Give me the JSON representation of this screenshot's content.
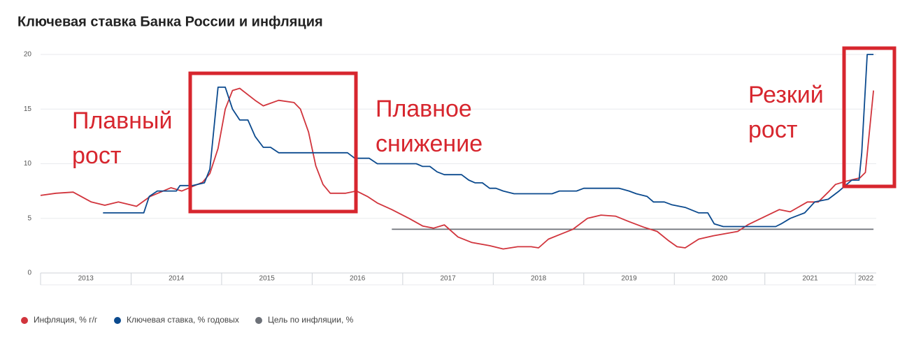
{
  "chart_data": {
    "type": "line",
    "title": "Ключевая ставка Банка России и инфляция",
    "annotations": [
      {
        "lines": [
          "Плавный",
          "рост"
        ]
      },
      {
        "lines": [
          "Плавное",
          "снижение"
        ]
      },
      {
        "lines": [
          "Резкий",
          "рост"
        ]
      }
    ],
    "xlim": [
      2013,
      2022.23
    ],
    "xticks": [
      2013,
      2014,
      2015,
      2016,
      2017,
      2018,
      2019,
      2020,
      2021,
      2022
    ],
    "ylim": [
      0,
      20
    ],
    "yticks": [
      0,
      5,
      10,
      15,
      20
    ],
    "grid": true,
    "series": [
      {
        "name": "Инфляция, % г/г",
        "color": "#d1343c",
        "x": [
          2013.0,
          2013.17,
          2013.36,
          2013.56,
          2013.71,
          2013.86,
          2014.06,
          2014.21,
          2014.44,
          2014.56,
          2014.79,
          2014.87,
          2014.96,
          2015.04,
          2015.12,
          2015.2,
          2015.37,
          2015.46,
          2015.63,
          2015.8,
          2015.87,
          2015.96,
          2016.04,
          2016.12,
          2016.2,
          2016.37,
          2016.49,
          2016.61,
          2016.72,
          2016.88,
          2017.07,
          2017.22,
          2017.34,
          2017.46,
          2017.61,
          2017.76,
          2017.96,
          2018.11,
          2018.27,
          2018.42,
          2018.5,
          2018.61,
          2018.73,
          2018.88,
          2019.04,
          2019.19,
          2019.35,
          2019.5,
          2019.66,
          2019.81,
          2019.93,
          2020.03,
          2020.12,
          2020.27,
          2020.43,
          2020.7,
          2020.81,
          2021.01,
          2021.16,
          2021.28,
          2021.47,
          2021.59,
          2021.7,
          2021.78,
          2021.9,
          2022.05,
          2022.11,
          2022.2
        ],
        "values": [
          7.1,
          7.3,
          7.4,
          6.5,
          6.2,
          6.5,
          6.1,
          7.0,
          7.8,
          7.5,
          8.3,
          9.1,
          11.4,
          15.0,
          16.7,
          16.9,
          15.8,
          15.3,
          15.8,
          15.6,
          15.0,
          12.9,
          9.8,
          8.1,
          7.3,
          7.3,
          7.5,
          7.0,
          6.4,
          5.8,
          5.0,
          4.3,
          4.1,
          4.4,
          3.3,
          2.8,
          2.5,
          2.2,
          2.4,
          2.4,
          2.3,
          3.1,
          3.5,
          4.0,
          5.0,
          5.3,
          5.2,
          4.7,
          4.2,
          3.8,
          3.0,
          2.4,
          2.3,
          3.1,
          3.4,
          3.8,
          4.4,
          5.2,
          5.8,
          5.6,
          6.5,
          6.5,
          7.4,
          8.1,
          8.4,
          8.7,
          9.2,
          16.7
        ]
      },
      {
        "name": "Ключевая ставка, % годовых",
        "color": "#0b4a8e",
        "x": [
          2013.69,
          2014.14,
          2014.2,
          2014.29,
          2014.5,
          2014.54,
          2014.68,
          2014.81,
          2014.87,
          2014.96,
          2015.04,
          2015.12,
          2015.2,
          2015.29,
          2015.37,
          2015.46,
          2015.54,
          2015.63,
          2016.39,
          2016.47,
          2016.63,
          2016.72,
          2017.15,
          2017.22,
          2017.3,
          2017.38,
          2017.46,
          2017.65,
          2017.73,
          2017.8,
          2017.88,
          2017.96,
          2018.03,
          2018.11,
          2018.23,
          2018.65,
          2018.73,
          2018.92,
          2019.0,
          2019.39,
          2019.5,
          2019.58,
          2019.7,
          2019.77,
          2019.89,
          2019.97,
          2020.12,
          2020.27,
          2020.37,
          2020.44,
          2020.54,
          2021.12,
          2021.18,
          2021.28,
          2021.44,
          2021.55,
          2021.7,
          2021.82,
          2021.96,
          2022.04,
          2022.07,
          2022.13,
          2022.2
        ],
        "values": [
          5.5,
          5.5,
          7.0,
          7.5,
          7.5,
          8.0,
          8.0,
          8.25,
          9.5,
          17.0,
          17.0,
          15.0,
          14.0,
          14.0,
          12.5,
          11.5,
          11.5,
          11.0,
          11.0,
          10.5,
          10.5,
          10.0,
          10.0,
          9.75,
          9.75,
          9.25,
          9.0,
          9.0,
          8.5,
          8.25,
          8.25,
          7.75,
          7.75,
          7.5,
          7.25,
          7.25,
          7.5,
          7.5,
          7.75,
          7.75,
          7.5,
          7.25,
          7.0,
          6.5,
          6.5,
          6.25,
          6.0,
          5.5,
          5.5,
          4.5,
          4.25,
          4.25,
          4.5,
          5.0,
          5.5,
          6.5,
          6.75,
          7.5,
          8.5,
          8.5,
          11.0,
          20.0,
          20.0
        ]
      },
      {
        "name": "Цель по инфляции, %",
        "color": "#6d7178",
        "x": [
          2016.88,
          2022.2
        ],
        "values": [
          4,
          4
        ]
      }
    ]
  }
}
